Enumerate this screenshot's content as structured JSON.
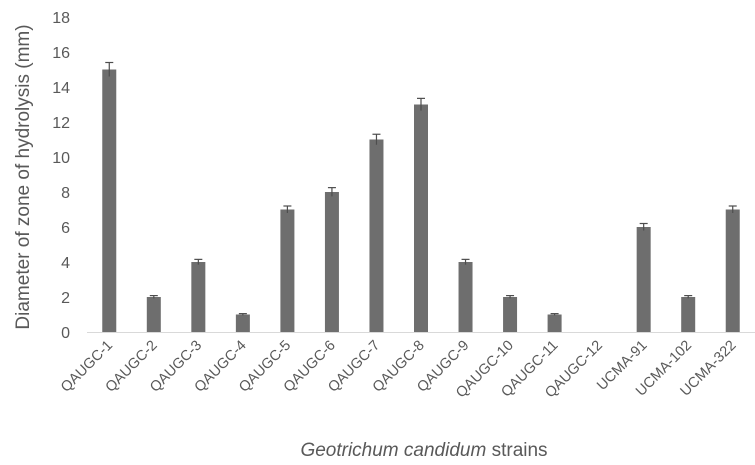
{
  "chart_data": {
    "type": "bar",
    "categories": [
      "QAUGC-1",
      "QAUGC-2",
      "QAUGC-3",
      "QAUGC-4",
      "QAUGC-5",
      "QAUGC-6",
      "QAUGC-7",
      "QAUGC-8",
      "QAUGC-9",
      "QAUGC-10",
      "QAUGC-11",
      "QAUGC-12",
      "UCMA-91",
      "UCMA-102",
      "UCMA-322"
    ],
    "values": [
      15,
      2,
      4,
      1,
      7,
      8,
      11,
      13,
      4,
      2,
      1,
      0,
      6,
      2,
      7
    ],
    "error": [
      0.4,
      0.08,
      0.15,
      0.05,
      0.2,
      0.25,
      0.3,
      0.35,
      0.15,
      0.08,
      0.05,
      0,
      0.2,
      0.08,
      0.2
    ],
    "ylabel": "Diameter of zone of hydrolysis (mm)",
    "xlabel_italic": "Geotrichum candidum",
    "xlabel_rest": " strains",
    "ylim": [
      0,
      18
    ],
    "yticks": [
      0,
      2,
      4,
      6,
      8,
      10,
      12,
      14,
      16,
      18
    ],
    "grid": false,
    "bar_color": "#6e6e6e",
    "axis_color": "#d9d9d9",
    "text_color": "#595959"
  }
}
